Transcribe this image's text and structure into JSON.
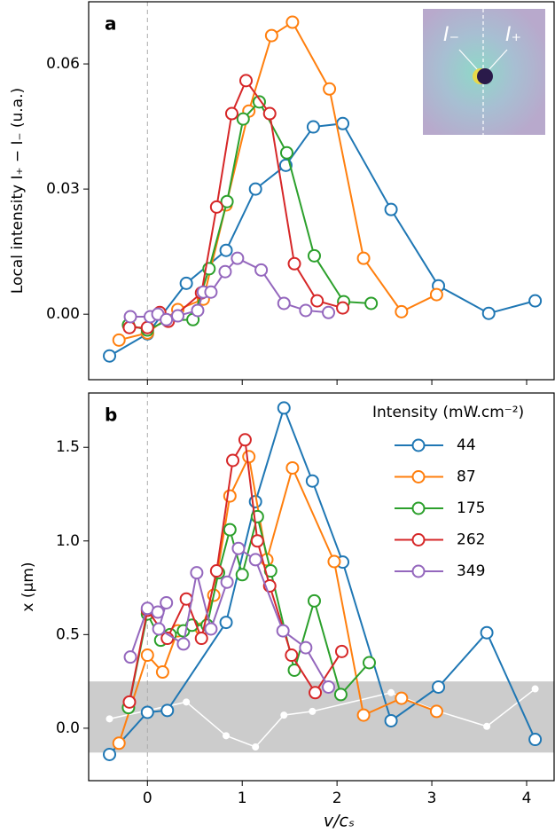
{
  "chart_data": [
    {
      "type": "line",
      "panel_label": "a",
      "ylabel": "Local intensity I₊ − I₋ (u.a.)",
      "xlim": [
        -0.62,
        4.29
      ],
      "xticks": [
        0,
        1,
        2,
        3,
        4
      ],
      "show_xticklabels": false,
      "ylim": [
        -0.0157,
        0.0749
      ],
      "yticks": [
        {
          "value": 0,
          "label": "0.00"
        },
        {
          "value": 0.03,
          "label": "0.03"
        },
        {
          "value": 0.06,
          "label": "0.06"
        }
      ],
      "vline": 0,
      "inset_labels": [
        "I₋",
        "I₊"
      ],
      "series": [
        {
          "name": "44",
          "color": "#1f77b4",
          "x": [
            -0.4,
            0,
            0.41,
            0.83,
            1.14,
            1.46,
            1.75,
            2.06,
            2.57,
            3.07,
            3.6,
            4.09
          ],
          "values": [
            -0.01,
            -0.0047,
            0.0074,
            0.0153,
            0.03,
            0.0357,
            0.0449,
            0.0457,
            0.0251,
            0.0068,
            0.0002,
            0.0032
          ]
        },
        {
          "name": "87",
          "color": "#ff7f0e",
          "x": [
            -0.3,
            0,
            0.32,
            0.59,
            0.83,
            1.07,
            1.31,
            1.53,
            1.92,
            2.28,
            2.68,
            3.05
          ],
          "values": [
            -0.0062,
            -0.0045,
            0.0011,
            0.0036,
            0.0262,
            0.0487,
            0.0668,
            0.07,
            0.054,
            0.0134,
            0.0006,
            0.0047
          ]
        },
        {
          "name": "175",
          "color": "#2ca02c",
          "x": [
            -0.2,
            0,
            0.21,
            0.48,
            0.65,
            0.84,
            1.01,
            1.18,
            1.47,
            1.76,
            2.07,
            2.36
          ],
          "values": [
            -0.0026,
            -0.0038,
            -0.0015,
            -0.0013,
            0.0109,
            0.027,
            0.0468,
            0.0509,
            0.0387,
            0.014,
            0.003,
            0.0026
          ]
        },
        {
          "name": "262",
          "color": "#d62728",
          "x": [
            -0.19,
            0,
            0.13,
            0.22,
            0.57,
            0.73,
            0.89,
            1.04,
            1.29,
            1.55,
            1.79,
            2.06
          ],
          "values": [
            -0.0032,
            -0.0032,
            0.0004,
            -0.0017,
            0.0051,
            0.0257,
            0.0481,
            0.056,
            0.0481,
            0.0121,
            0.0032,
            0.0015
          ]
        },
        {
          "name": "349",
          "color": "#9467bd",
          "x": [
            -0.18,
            0.03,
            0.11,
            0.2,
            0.32,
            0.53,
            0.59,
            0.67,
            0.82,
            0.95,
            1.2,
            1.44,
            1.67,
            1.91
          ],
          "values": [
            -0.0006,
            -0.0006,
            0.0,
            -0.0013,
            -0.0004,
            0.0009,
            0.0053,
            0.0053,
            0.0102,
            0.0134,
            0.0106,
            0.0026,
            0.0009,
            0.0004
          ]
        }
      ]
    },
    {
      "type": "line",
      "panel_label": "b",
      "ylabel": "x (μm)",
      "xlabel": "v/cₛ",
      "xlim": [
        -0.62,
        4.29
      ],
      "xticks": [
        0,
        1,
        2,
        3,
        4
      ],
      "ylim": [
        -0.28,
        1.79
      ],
      "yticks": [
        {
          "value": 0,
          "label": "0.0"
        },
        {
          "value": 0.5,
          "label": "0.5"
        },
        {
          "value": 1,
          "label": "1.0"
        },
        {
          "value": 1.5,
          "label": "1.5"
        }
      ],
      "vline": 0,
      "band": [
        -0.13,
        0.25
      ],
      "band_color": "#cccccc",
      "legend_title": "Intensity (mW.cm⁻²)",
      "legend": "upper right",
      "reference": {
        "color": "#ffffff",
        "x": [
          -0.4,
          0.41,
          0.83,
          1.14,
          1.44,
          1.74,
          2.57,
          3.07,
          3.58,
          4.09
        ],
        "values": [
          0.05,
          0.14,
          -0.04,
          -0.1,
          0.07,
          0.09,
          0.19,
          0.09,
          0.01,
          0.21
        ]
      },
      "series": [
        {
          "name": "44",
          "color": "#1f77b4",
          "x": [
            -0.4,
            0,
            0.21,
            0.83,
            1.14,
            1.44,
            1.74,
            2.06,
            2.57,
            3.07,
            3.58,
            4.09
          ],
          "values": [
            -0.14,
            0.085,
            0.095,
            0.565,
            1.21,
            1.71,
            1.32,
            0.887,
            0.04,
            0.22,
            0.51,
            -0.06
          ]
        },
        {
          "name": "87",
          "color": "#ff7f0e",
          "x": [
            -0.3,
            0,
            0.16,
            0.32,
            0.57,
            0.7,
            0.87,
            1.07,
            1.26,
            1.53,
            1.97,
            2.28,
            2.68,
            3.05
          ],
          "values": [
            -0.08,
            0.39,
            0.3,
            0.52,
            0.53,
            0.71,
            1.24,
            1.45,
            0.9,
            1.39,
            0.89,
            0.07,
            0.16,
            0.09
          ]
        },
        {
          "name": "175",
          "color": "#2ca02c",
          "x": [
            -0.2,
            0,
            0.14,
            0.24,
            0.38,
            0.47,
            0.63,
            0.75,
            0.87,
            1.0,
            1.16,
            1.3,
            1.55,
            1.76,
            2.04,
            2.34
          ],
          "values": [
            0.11,
            0.61,
            0.47,
            0.5,
            0.52,
            0.55,
            0.55,
            0.83,
            1.06,
            0.82,
            1.13,
            0.84,
            0.31,
            0.68,
            0.18,
            0.35
          ]
        },
        {
          "name": "262",
          "color": "#d62728",
          "x": [
            -0.19,
            0,
            0.21,
            0.41,
            0.57,
            0.73,
            0.9,
            1.03,
            1.16,
            1.29,
            1.52,
            1.77,
            2.05
          ],
          "values": [
            0.14,
            0.63,
            0.48,
            0.69,
            0.48,
            0.84,
            1.43,
            1.54,
            1.0,
            0.76,
            0.39,
            0.19,
            0.41
          ]
        },
        {
          "name": "349",
          "color": "#9467bd",
          "x": [
            -0.18,
            0,
            0.11,
            0.2,
            0.12,
            0.38,
            0.52,
            0.67,
            0.84,
            0.96,
            1.14,
            1.43,
            1.67,
            1.91
          ],
          "values": [
            0.38,
            0.64,
            0.62,
            0.67,
            0.53,
            0.45,
            0.83,
            0.53,
            0.78,
            0.96,
            0.9,
            0.52,
            0.43,
            0.22
          ]
        }
      ]
    }
  ]
}
